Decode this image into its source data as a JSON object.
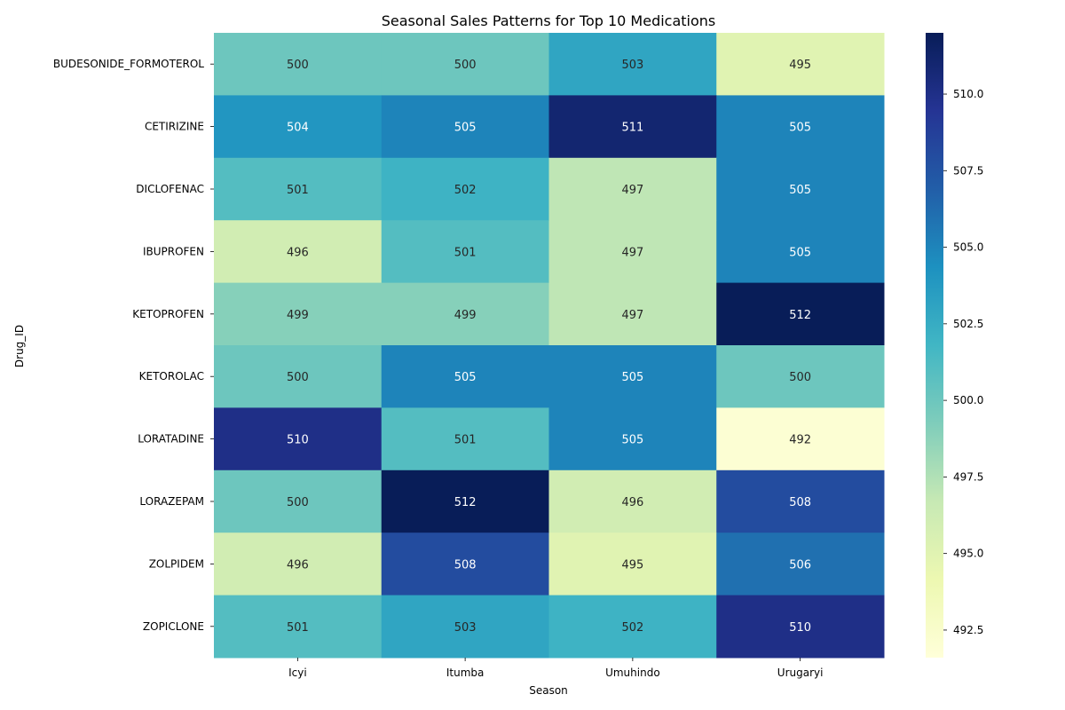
{
  "chart_data": {
    "type": "heatmap",
    "title": "Seasonal Sales Patterns for Top 10 Medications",
    "xlabel": "Season",
    "ylabel": "Drug_ID",
    "x": [
      "Icyi",
      "Itumba",
      "Umuhindo",
      "Urugaryi"
    ],
    "y": [
      "BUDESONIDE_FORMOTEROL",
      "CETIRIZINE",
      "DICLOFENAC",
      "IBUPROFEN",
      "KETOPROFEN",
      "KETOROLAC",
      "LORATADINE",
      "LORAZEPAM",
      "ZOLPIDEM",
      "ZOPICLONE"
    ],
    "values": [
      [
        500,
        500,
        503,
        495
      ],
      [
        504,
        505,
        511,
        505
      ],
      [
        501,
        502,
        497,
        505
      ],
      [
        496,
        501,
        497,
        505
      ],
      [
        499,
        499,
        497,
        512
      ],
      [
        500,
        505,
        505,
        500
      ],
      [
        510,
        501,
        505,
        492
      ],
      [
        500,
        512,
        496,
        508
      ],
      [
        496,
        508,
        495,
        506
      ],
      [
        501,
        503,
        502,
        510
      ]
    ],
    "colormap": "YlGnBu",
    "colorbar": {
      "range": [
        491.6,
        512.0
      ],
      "ticks": [
        "492.5",
        "495.0",
        "497.5",
        "500.0",
        "502.5",
        "505.0",
        "507.5",
        "510.0"
      ]
    },
    "grid": false,
    "legend": "colorbar-right"
  }
}
